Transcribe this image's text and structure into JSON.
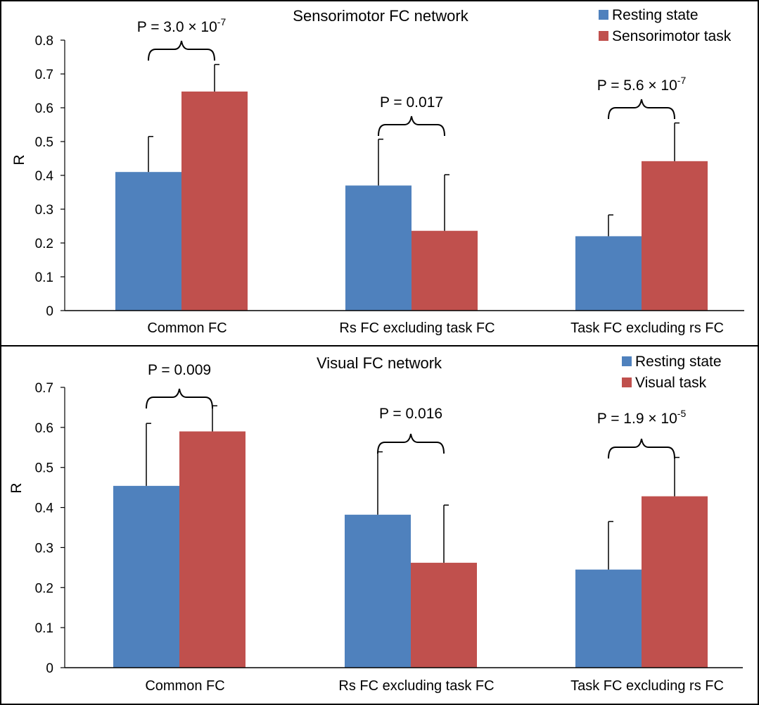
{
  "chart_data": [
    {
      "type": "bar",
      "title": "Sensorimotor FC network",
      "ylabel": "R",
      "xlabel": "",
      "ylim": [
        0,
        0.8
      ],
      "yticks": [
        0,
        0.1,
        0.2,
        0.3,
        0.4,
        0.5,
        0.6,
        0.7,
        0.8
      ],
      "categories": [
        "Common FC",
        "Rs FC excluding task FC",
        "Task FC excluding rs FC"
      ],
      "series": [
        {
          "name": "Resting state",
          "color": "#4F81BD",
          "values": [
            0.41,
            0.37,
            0.22
          ],
          "errors": [
            0.105,
            0.137,
            0.063
          ]
        },
        {
          "name": "Sensorimotor task",
          "color": "#C0504D",
          "values": [
            0.648,
            0.236,
            0.442
          ],
          "errors": [
            0.08,
            0.166,
            0.113
          ]
        }
      ],
      "annotations": [
        {
          "text": "P = 3.0 × 10",
          "sup": "-7"
        },
        {
          "text": "P = 0.017",
          "sup": ""
        },
        {
          "text": "P = 5.6 × 10",
          "sup": "-7"
        }
      ],
      "legend_position": "top-right"
    },
    {
      "type": "bar",
      "title": "Visual FC network",
      "ylabel": "R",
      "xlabel": "",
      "ylim": [
        0,
        0.7
      ],
      "yticks": [
        0,
        0.1,
        0.2,
        0.3,
        0.4,
        0.5,
        0.6,
        0.7
      ],
      "categories": [
        "Common FC",
        "Rs FC excluding task FC",
        "Task FC excluding rs FC"
      ],
      "series": [
        {
          "name": "Resting state",
          "color": "#4F81BD",
          "values": [
            0.454,
            0.382,
            0.245
          ],
          "errors": [
            0.156,
            0.157,
            0.12
          ]
        },
        {
          "name": "Visual task",
          "color": "#C0504D",
          "values": [
            0.59,
            0.262,
            0.428
          ],
          "errors": [
            0.064,
            0.144,
            0.097
          ]
        }
      ],
      "annotations": [
        {
          "text": "P = 0.009",
          "sup": ""
        },
        {
          "text": "P = 0.016",
          "sup": ""
        },
        {
          "text": "P = 1.9 × 10",
          "sup": "-5"
        }
      ],
      "legend_position": "top-right"
    }
  ]
}
